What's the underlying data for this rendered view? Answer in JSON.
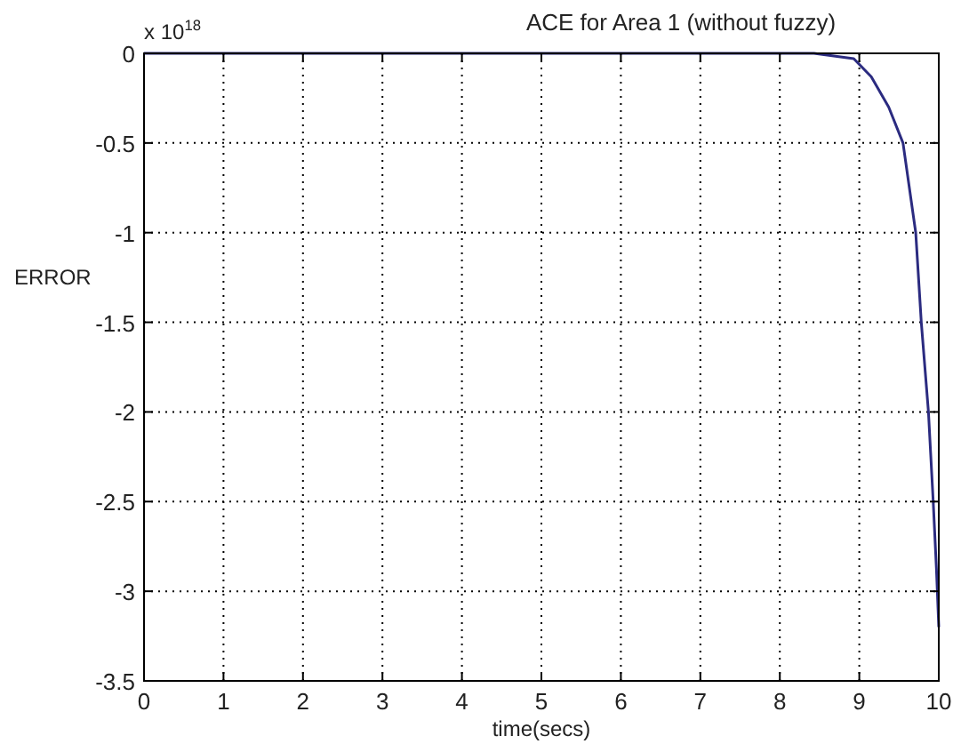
{
  "chart_data": {
    "type": "line",
    "title": "ACE for Area 1 (without fuzzy)",
    "xlabel": "time(secs)",
    "ylabel": "ERROR",
    "annotations": [
      "x 10$^{18}$"
    ],
    "x": [
      0,
      2,
      4,
      6,
      8,
      8.43,
      8.93,
      9.15,
      9.37,
      9.55,
      9.71,
      9.78,
      9.87,
      9.93,
      9.97,
      10
    ],
    "series": [
      {
        "color": "#2b2b80",
        "values": [
          0,
          0,
          0,
          0,
          0,
          0,
          -0.03,
          -0.13,
          -0.3,
          -0.5,
          -1.0,
          -1.5,
          -2.0,
          -2.5,
          -2.87,
          -3.2
        ]
      }
    ],
    "xlim": [
      0,
      10
    ],
    "xticks": [
      0,
      1,
      2,
      3,
      4,
      5,
      6,
      7,
      8,
      9,
      10
    ],
    "ylim": [
      -3.5,
      0
    ],
    "yticks": [
      -3.5,
      -3,
      -2.5,
      -2,
      -1.5,
      -1,
      -0.5,
      0
    ],
    "grid": true,
    "line_style": "solid",
    "marker": "none"
  }
}
